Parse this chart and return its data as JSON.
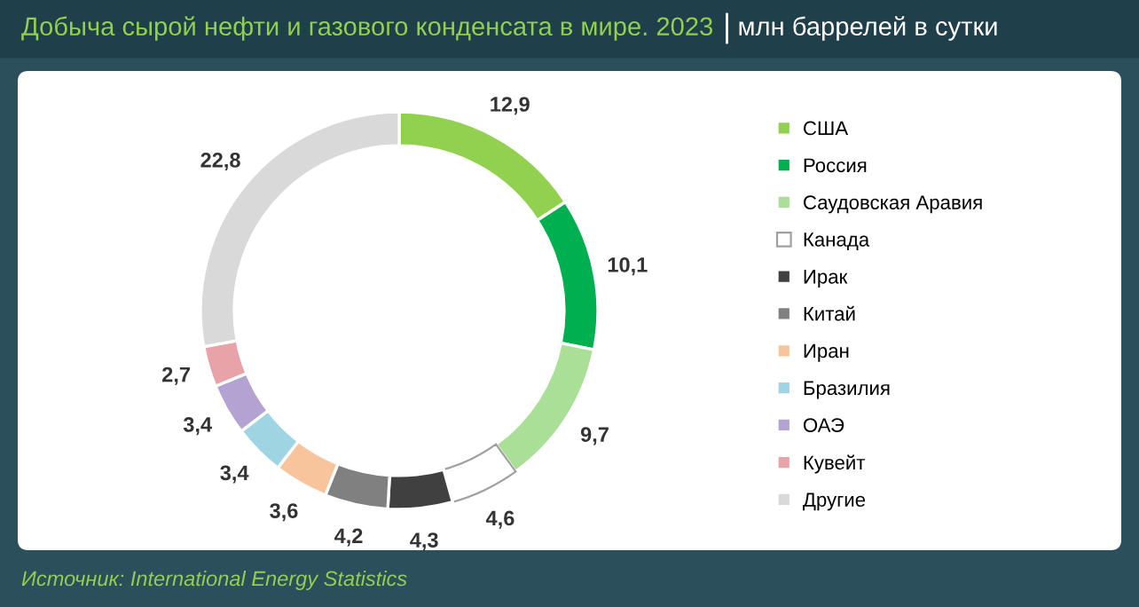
{
  "chart_data": {
    "type": "donut",
    "title": "Добыча сырой нефти и газового конденсата в мире. 2023",
    "subtitle": "млн баррелей в сутки",
    "categories": [
      "США",
      "Россия",
      "Саудовская Аравия",
      "Канада",
      "Ирак",
      "Китай",
      "Иран",
      "Бразилия",
      "ОАЭ",
      "Кувейт",
      "Другие"
    ],
    "values": [
      12.9,
      10.1,
      9.7,
      4.6,
      4.3,
      4.2,
      3.6,
      3.4,
      3.4,
      2.7,
      22.8
    ],
    "value_labels": [
      "12,9",
      "10,1",
      "9,7",
      "4,6",
      "4,3",
      "4,2",
      "3,6",
      "3,4",
      "3,4",
      "2,7",
      "22,8"
    ],
    "colors": [
      "#92d050",
      "#00b050",
      "#a9df96",
      "#ffffff",
      "#404040",
      "#808080",
      "#f8c49c",
      "#9fd4e2",
      "#b4a2d2",
      "#e8a3a8",
      "#d9d9d9"
    ],
    "legend": "right",
    "annotations": [
      "Источник: International Energy Statistics"
    ]
  }
}
